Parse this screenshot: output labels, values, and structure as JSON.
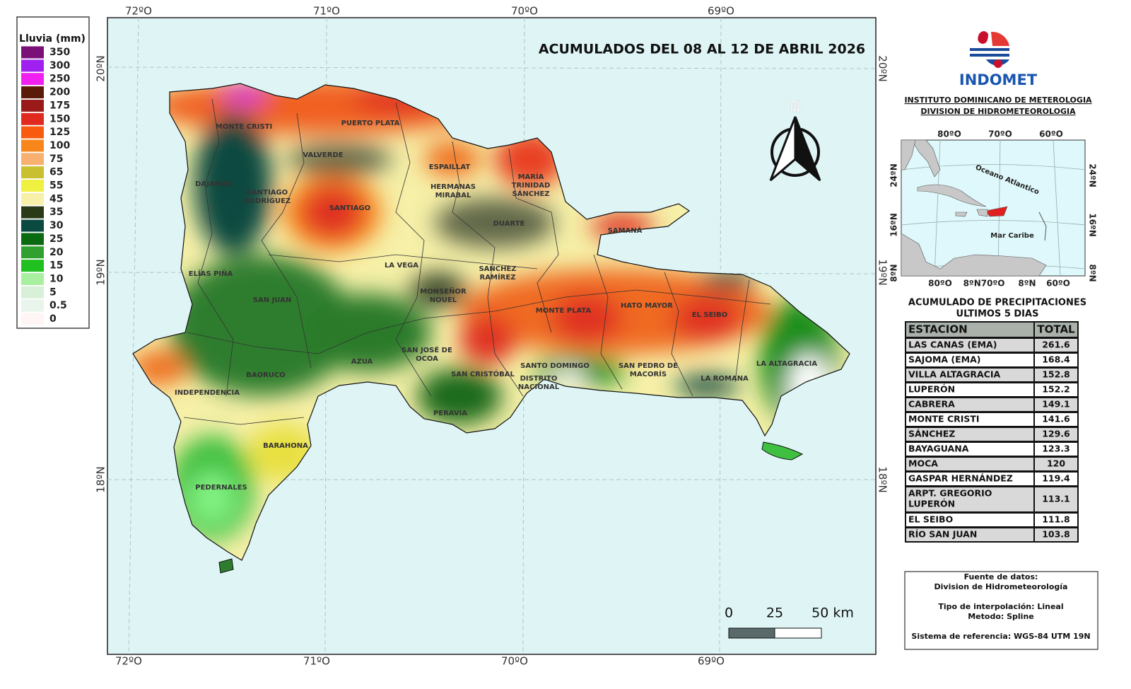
{
  "title": "ACUMULADOS DEL 08 AL 12 DE ABRIL 2026",
  "legend": {
    "title": "Lluvia (mm)",
    "items": [
      {
        "label": "350",
        "color": "#7b0f78"
      },
      {
        "label": "300",
        "color": "#a020f0"
      },
      {
        "label": "250",
        "color": "#f020f0"
      },
      {
        "label": "200",
        "color": "#5a1a08"
      },
      {
        "label": "175",
        "color": "#9a1a1a"
      },
      {
        "label": "150",
        "color": "#e02a20"
      },
      {
        "label": "125",
        "color": "#f85a10"
      },
      {
        "label": "100",
        "color": "#f8861a"
      },
      {
        "label": "75",
        "color": "#f8b070"
      },
      {
        "label": "65",
        "color": "#c8c030"
      },
      {
        "label": "55",
        "color": "#f0f040"
      },
      {
        "label": "45",
        "color": "#f8f0a8"
      },
      {
        "label": "35",
        "color": "#2a3a18"
      },
      {
        "label": "30",
        "color": "#0b4a40"
      },
      {
        "label": "25",
        "color": "#0a6a10"
      },
      {
        "label": "20",
        "color": "#30a030"
      },
      {
        "label": "15",
        "color": "#20c020"
      },
      {
        "label": "10",
        "color": "#a8f0a0"
      },
      {
        "label": "5",
        "color": "#d8f0d8"
      },
      {
        "label": "0.5",
        "color": "#e8f4ec"
      },
      {
        "label": "0",
        "color": "#fff5f5"
      }
    ]
  },
  "axes": {
    "top": [
      "72ºO",
      "71ºO",
      "70ºO",
      "69ºO"
    ],
    "bottom": [
      "72ºO",
      "71ºO",
      "70ºO",
      "69ºO"
    ],
    "left": [
      "20ºN",
      "19ºN",
      "18ºN"
    ],
    "right": [
      "20ºN",
      "19ºN",
      "18ºN"
    ]
  },
  "north": "N",
  "logo": {
    "name": "INDOMET",
    "lines": [
      "INSTITUTO DOMINICANO DE METEROLOGIA",
      "DIVISION DE HIDROMETEOROLOGIA"
    ]
  },
  "inset": {
    "top": [
      "80ºO",
      "70ºO",
      "60ºO"
    ],
    "bottom": [
      "80ºO",
      "8ºN70ºO",
      "8ºN",
      "60ºO"
    ],
    "left": [
      "24ºN",
      "16ºN",
      "8ºN"
    ],
    "right": [
      "24ºN",
      "16ºN",
      "8ºN"
    ],
    "labels": [
      "Oceano Atlantico",
      "Mar Caribe"
    ]
  },
  "places": [
    {
      "lines": [
        "MONTE CRISTI"
      ]
    },
    {
      "lines": [
        "PUERTO PLATA"
      ]
    },
    {
      "lines": [
        "VALVERDE"
      ]
    },
    {
      "lines": [
        "ESPAILLAT"
      ]
    },
    {
      "lines": [
        "MARÍA",
        "TRINIDAD",
        "SÁNCHEZ"
      ]
    },
    {
      "lines": [
        "HERMANAS",
        "MIRABAL"
      ]
    },
    {
      "lines": [
        "DAJABÓN"
      ]
    },
    {
      "lines": [
        "SANTIAGO",
        "RODRÍGUEZ"
      ]
    },
    {
      "lines": [
        "SANTIAGO"
      ]
    },
    {
      "lines": [
        "DUARTE"
      ]
    },
    {
      "lines": [
        "SAMANÁ"
      ]
    },
    {
      "lines": [
        "LA VEGA"
      ]
    },
    {
      "lines": [
        "SANCHEZ",
        "RAMÍREZ"
      ]
    },
    {
      "lines": [
        "ELÍAS PIÑA"
      ]
    },
    {
      "lines": [
        "MONSEÑOR",
        "NOUEL"
      ]
    },
    {
      "lines": [
        "SAN JUAN"
      ]
    },
    {
      "lines": [
        "MONTE PLATA"
      ]
    },
    {
      "lines": [
        "HATO MAYOR"
      ]
    },
    {
      "lines": [
        "EL SEIBO"
      ]
    },
    {
      "lines": [
        "AZUA"
      ]
    },
    {
      "lines": [
        "SAN JOSÉ DE",
        "OCOA"
      ]
    },
    {
      "lines": [
        "SAN CRISTÓBAL"
      ]
    },
    {
      "lines": [
        "SANTO DOMINGO"
      ]
    },
    {
      "lines": [
        "DISTRITO",
        "NACIONAL"
      ]
    },
    {
      "lines": [
        "SAN PEDRO DE",
        "MACORÍS"
      ]
    },
    {
      "lines": [
        "LA ROMANA"
      ]
    },
    {
      "lines": [
        "LA ALTAGRACIA"
      ]
    },
    {
      "lines": [
        "BAORUCO"
      ]
    },
    {
      "lines": [
        "INDEPENDENCIA"
      ]
    },
    {
      "lines": [
        "PERAVIA"
      ]
    },
    {
      "lines": [
        "BARAHONA"
      ]
    },
    {
      "lines": [
        "PEDERNALES"
      ]
    }
  ],
  "table": {
    "title": [
      "ACUMULADO DE PRECIPITACIONES",
      "ULTIMOS 5 DIAS"
    ],
    "header": [
      "ESTACION",
      "TOTAL"
    ],
    "rows": [
      {
        "station": [
          "LAS CANAS (EMA)"
        ],
        "total": 261.6
      },
      {
        "station": [
          "SAJOMA (EMA)"
        ],
        "total": 168.4
      },
      {
        "station": [
          "VILLA ALTAGRACIA"
        ],
        "total": 152.8
      },
      {
        "station": [
          "LUPERÓN"
        ],
        "total": 152.2
      },
      {
        "station": [
          "CABRERA"
        ],
        "total": 149.1
      },
      {
        "station": [
          "MONTE CRISTI"
        ],
        "total": 141.6
      },
      {
        "station": [
          "SÁNCHEZ"
        ],
        "total": 129.6
      },
      {
        "station": [
          "BAYAGUANA"
        ],
        "total": 123.3
      },
      {
        "station": [
          "MOCA"
        ],
        "total": 120
      },
      {
        "station": [
          "GASPAR HERNÁNDEZ"
        ],
        "total": 119.4
      },
      {
        "station": [
          "ARPT. GREGORIO",
          "LUPERÓN"
        ],
        "total": 113.1
      },
      {
        "station": [
          "EL SEIBO"
        ],
        "total": 111.8
      },
      {
        "station": [
          "RÍO SAN JUAN"
        ],
        "total": 103.8
      }
    ]
  },
  "scale": [
    "0",
    "25",
    "50 km"
  ],
  "source": [
    "Fuente de datos:",
    "Division de Hidrometeorología",
    "Tipo de interpolación: Lineal",
    "Metodo: Spline",
    "Sistema de referencia: WGS-84 UTM 19N"
  ]
}
